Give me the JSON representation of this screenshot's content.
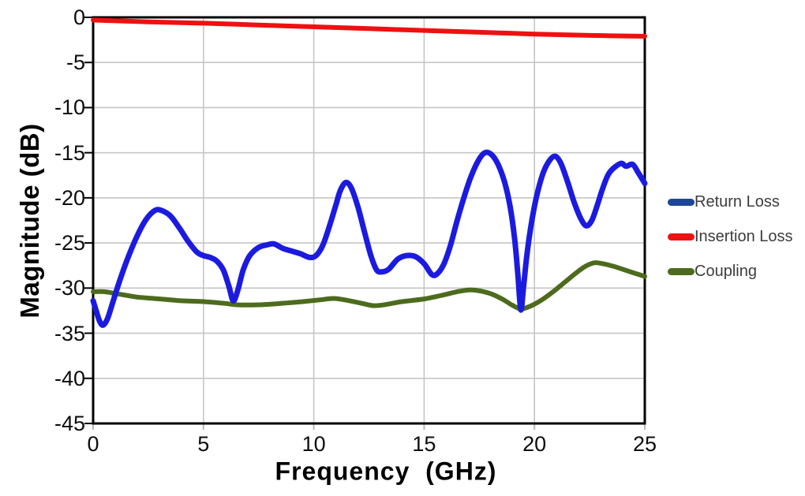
{
  "chart_data": {
    "type": "line",
    "title": "",
    "xlabel": "Frequency  (GHz)",
    "ylabel": "Magnitude (dB)",
    "xlim": [
      0,
      25
    ],
    "ylim": [
      -45,
      0
    ],
    "x_ticks": [
      0,
      5,
      10,
      15,
      20,
      25
    ],
    "y_ticks": [
      0,
      -5,
      -10,
      -15,
      -20,
      -25,
      -30,
      -35,
      -40,
      -45
    ],
    "grid": true,
    "grid_color": "#c6c6c6",
    "border_color": "#000000",
    "legend_position": "right",
    "series": [
      {
        "name": "Return Loss",
        "color": "#1b1be0",
        "legend_color": "#1f4696",
        "stroke_width": 7,
        "points": [
          [
            0,
            -31.4
          ],
          [
            0.15,
            -32.6
          ],
          [
            0.3,
            -33.7
          ],
          [
            0.45,
            -34.1
          ],
          [
            0.65,
            -33.4
          ],
          [
            0.9,
            -31.5
          ],
          [
            1.2,
            -29.2
          ],
          [
            1.6,
            -26.5
          ],
          [
            2.0,
            -24.2
          ],
          [
            2.4,
            -22.4
          ],
          [
            2.8,
            -21.4
          ],
          [
            3.1,
            -21.4
          ],
          [
            3.5,
            -22.0
          ],
          [
            3.9,
            -23.3
          ],
          [
            4.3,
            -24.8
          ],
          [
            4.7,
            -26.0
          ],
          [
            5.0,
            -26.4
          ],
          [
            5.3,
            -26.6
          ],
          [
            5.6,
            -27.0
          ],
          [
            5.9,
            -28.0
          ],
          [
            6.15,
            -29.8
          ],
          [
            6.35,
            -31.4
          ],
          [
            6.55,
            -30.3
          ],
          [
            6.8,
            -28.0
          ],
          [
            7.1,
            -26.4
          ],
          [
            7.5,
            -25.5
          ],
          [
            7.9,
            -25.2
          ],
          [
            8.2,
            -25.1
          ],
          [
            8.6,
            -25.6
          ],
          [
            9.0,
            -25.9
          ],
          [
            9.4,
            -26.2
          ],
          [
            9.8,
            -26.6
          ],
          [
            10.1,
            -26.4
          ],
          [
            10.4,
            -25.3
          ],
          [
            10.7,
            -23.2
          ],
          [
            11.0,
            -20.8
          ],
          [
            11.2,
            -19.2
          ],
          [
            11.45,
            -18.3
          ],
          [
            11.7,
            -18.9
          ],
          [
            12.0,
            -21.0
          ],
          [
            12.3,
            -23.8
          ],
          [
            12.6,
            -26.5
          ],
          [
            12.85,
            -28.0
          ],
          [
            13.1,
            -28.2
          ],
          [
            13.4,
            -27.9
          ],
          [
            13.8,
            -26.8
          ],
          [
            14.2,
            -26.4
          ],
          [
            14.6,
            -26.5
          ],
          [
            15.0,
            -27.3
          ],
          [
            15.35,
            -28.5
          ],
          [
            15.6,
            -28.4
          ],
          [
            15.9,
            -27.3
          ],
          [
            16.2,
            -25.2
          ],
          [
            16.5,
            -22.5
          ],
          [
            16.8,
            -20.0
          ],
          [
            17.1,
            -17.8
          ],
          [
            17.45,
            -15.9
          ],
          [
            17.75,
            -15.0
          ],
          [
            18.05,
            -15.2
          ],
          [
            18.35,
            -16.3
          ],
          [
            18.65,
            -18.3
          ],
          [
            18.9,
            -21.0
          ],
          [
            19.1,
            -24.5
          ],
          [
            19.25,
            -28.5
          ],
          [
            19.38,
            -32.4
          ],
          [
            19.5,
            -30.0
          ],
          [
            19.65,
            -26.5
          ],
          [
            19.85,
            -23.0
          ],
          [
            20.1,
            -19.8
          ],
          [
            20.4,
            -17.2
          ],
          [
            20.7,
            -15.8
          ],
          [
            20.95,
            -15.4
          ],
          [
            21.2,
            -16.2
          ],
          [
            21.5,
            -18.2
          ],
          [
            21.8,
            -20.5
          ],
          [
            22.1,
            -22.3
          ],
          [
            22.35,
            -23.1
          ],
          [
            22.6,
            -22.5
          ],
          [
            22.85,
            -20.8
          ],
          [
            23.1,
            -18.9
          ],
          [
            23.4,
            -17.2
          ],
          [
            23.9,
            -16.2
          ],
          [
            24.15,
            -16.5
          ],
          [
            24.45,
            -16.3
          ],
          [
            24.7,
            -17.2
          ],
          [
            25,
            -18.4
          ]
        ]
      },
      {
        "name": "Insertion Loss",
        "color": "#ee1111",
        "legend_color": "#ee1111",
        "stroke_width": 6,
        "points": [
          [
            0,
            -0.3
          ],
          [
            2.5,
            -0.5
          ],
          [
            5,
            -0.65
          ],
          [
            7.5,
            -0.85
          ],
          [
            10,
            -1.05
          ],
          [
            12.5,
            -1.25
          ],
          [
            15,
            -1.45
          ],
          [
            17.5,
            -1.65
          ],
          [
            20,
            -1.85
          ],
          [
            22.5,
            -2.0
          ],
          [
            25,
            -2.1
          ]
        ]
      },
      {
        "name": "Coupling",
        "color": "#4d6b1d",
        "legend_color": "#4d6b1d",
        "stroke_width": 6,
        "points": [
          [
            0,
            -30.4
          ],
          [
            0.5,
            -30.4
          ],
          [
            1,
            -30.6
          ],
          [
            1.5,
            -30.8
          ],
          [
            2,
            -31.0
          ],
          [
            3,
            -31.2
          ],
          [
            4,
            -31.4
          ],
          [
            5,
            -31.5
          ],
          [
            6,
            -31.7
          ],
          [
            6.5,
            -31.85
          ],
          [
            7.5,
            -31.85
          ],
          [
            8.5,
            -31.7
          ],
          [
            9.5,
            -31.5
          ],
          [
            10.3,
            -31.3
          ],
          [
            10.9,
            -31.15
          ],
          [
            11.5,
            -31.35
          ],
          [
            12.2,
            -31.7
          ],
          [
            12.7,
            -31.95
          ],
          [
            13.2,
            -31.85
          ],
          [
            14,
            -31.5
          ],
          [
            15,
            -31.2
          ],
          [
            15.8,
            -30.8
          ],
          [
            16.5,
            -30.4
          ],
          [
            17.1,
            -30.2
          ],
          [
            17.6,
            -30.35
          ],
          [
            18.1,
            -30.7
          ],
          [
            18.6,
            -31.3
          ],
          [
            19.0,
            -31.9
          ],
          [
            19.4,
            -32.3
          ],
          [
            19.9,
            -31.9
          ],
          [
            20.4,
            -31.2
          ],
          [
            20.9,
            -30.3
          ],
          [
            21.4,
            -29.3
          ],
          [
            21.9,
            -28.3
          ],
          [
            22.3,
            -27.6
          ],
          [
            22.7,
            -27.2
          ],
          [
            23.1,
            -27.3
          ],
          [
            23.6,
            -27.6
          ],
          [
            24.1,
            -28.0
          ],
          [
            24.6,
            -28.4
          ],
          [
            25,
            -28.7
          ]
        ]
      }
    ]
  }
}
